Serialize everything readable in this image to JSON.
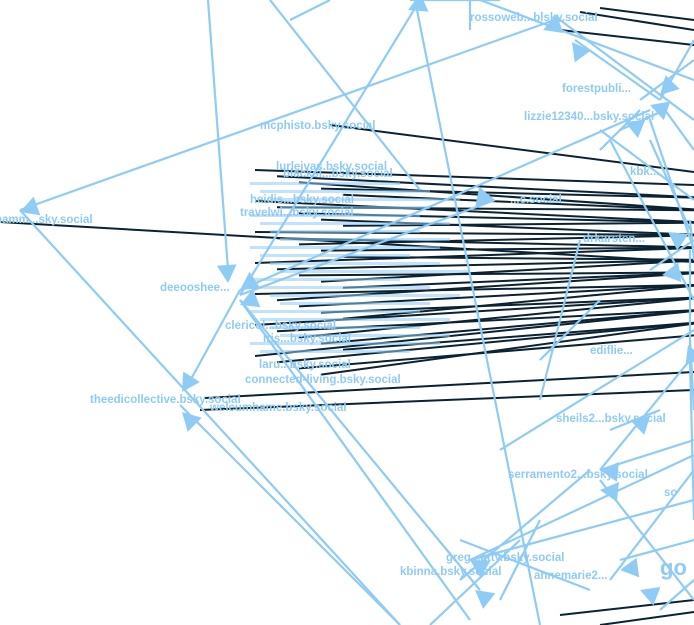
{
  "graph": {
    "labels": [
      "rossoweb...blsky.social",
      "forestpubli...",
      "lizzie12340...bsky.social",
      "mcphisto.bsky.social",
      "hamm...sky.social",
      "...c.social",
      "deeooshee...",
      "theedicollective.bsky.social",
      "welcumhame.bsky.social",
      "connected-living.bsky.social",
      "sheils2...bsky.social",
      "serramento2...bsky.social",
      "kbinna.bsky.social",
      "annemarie2...",
      "greg...atty.bsky.social",
      "lurleivas.bsky.social",
      "blacksi...bsky.social",
      "heidis...bsky.social",
      "travelwi...bsky.social",
      "clericol...bsky.social",
      "iris...bsky.social",
      "laru...bsky.social",
      "drkarsten...",
      "ediflie...",
      "kbk...",
      "go",
      "so"
    ]
  }
}
